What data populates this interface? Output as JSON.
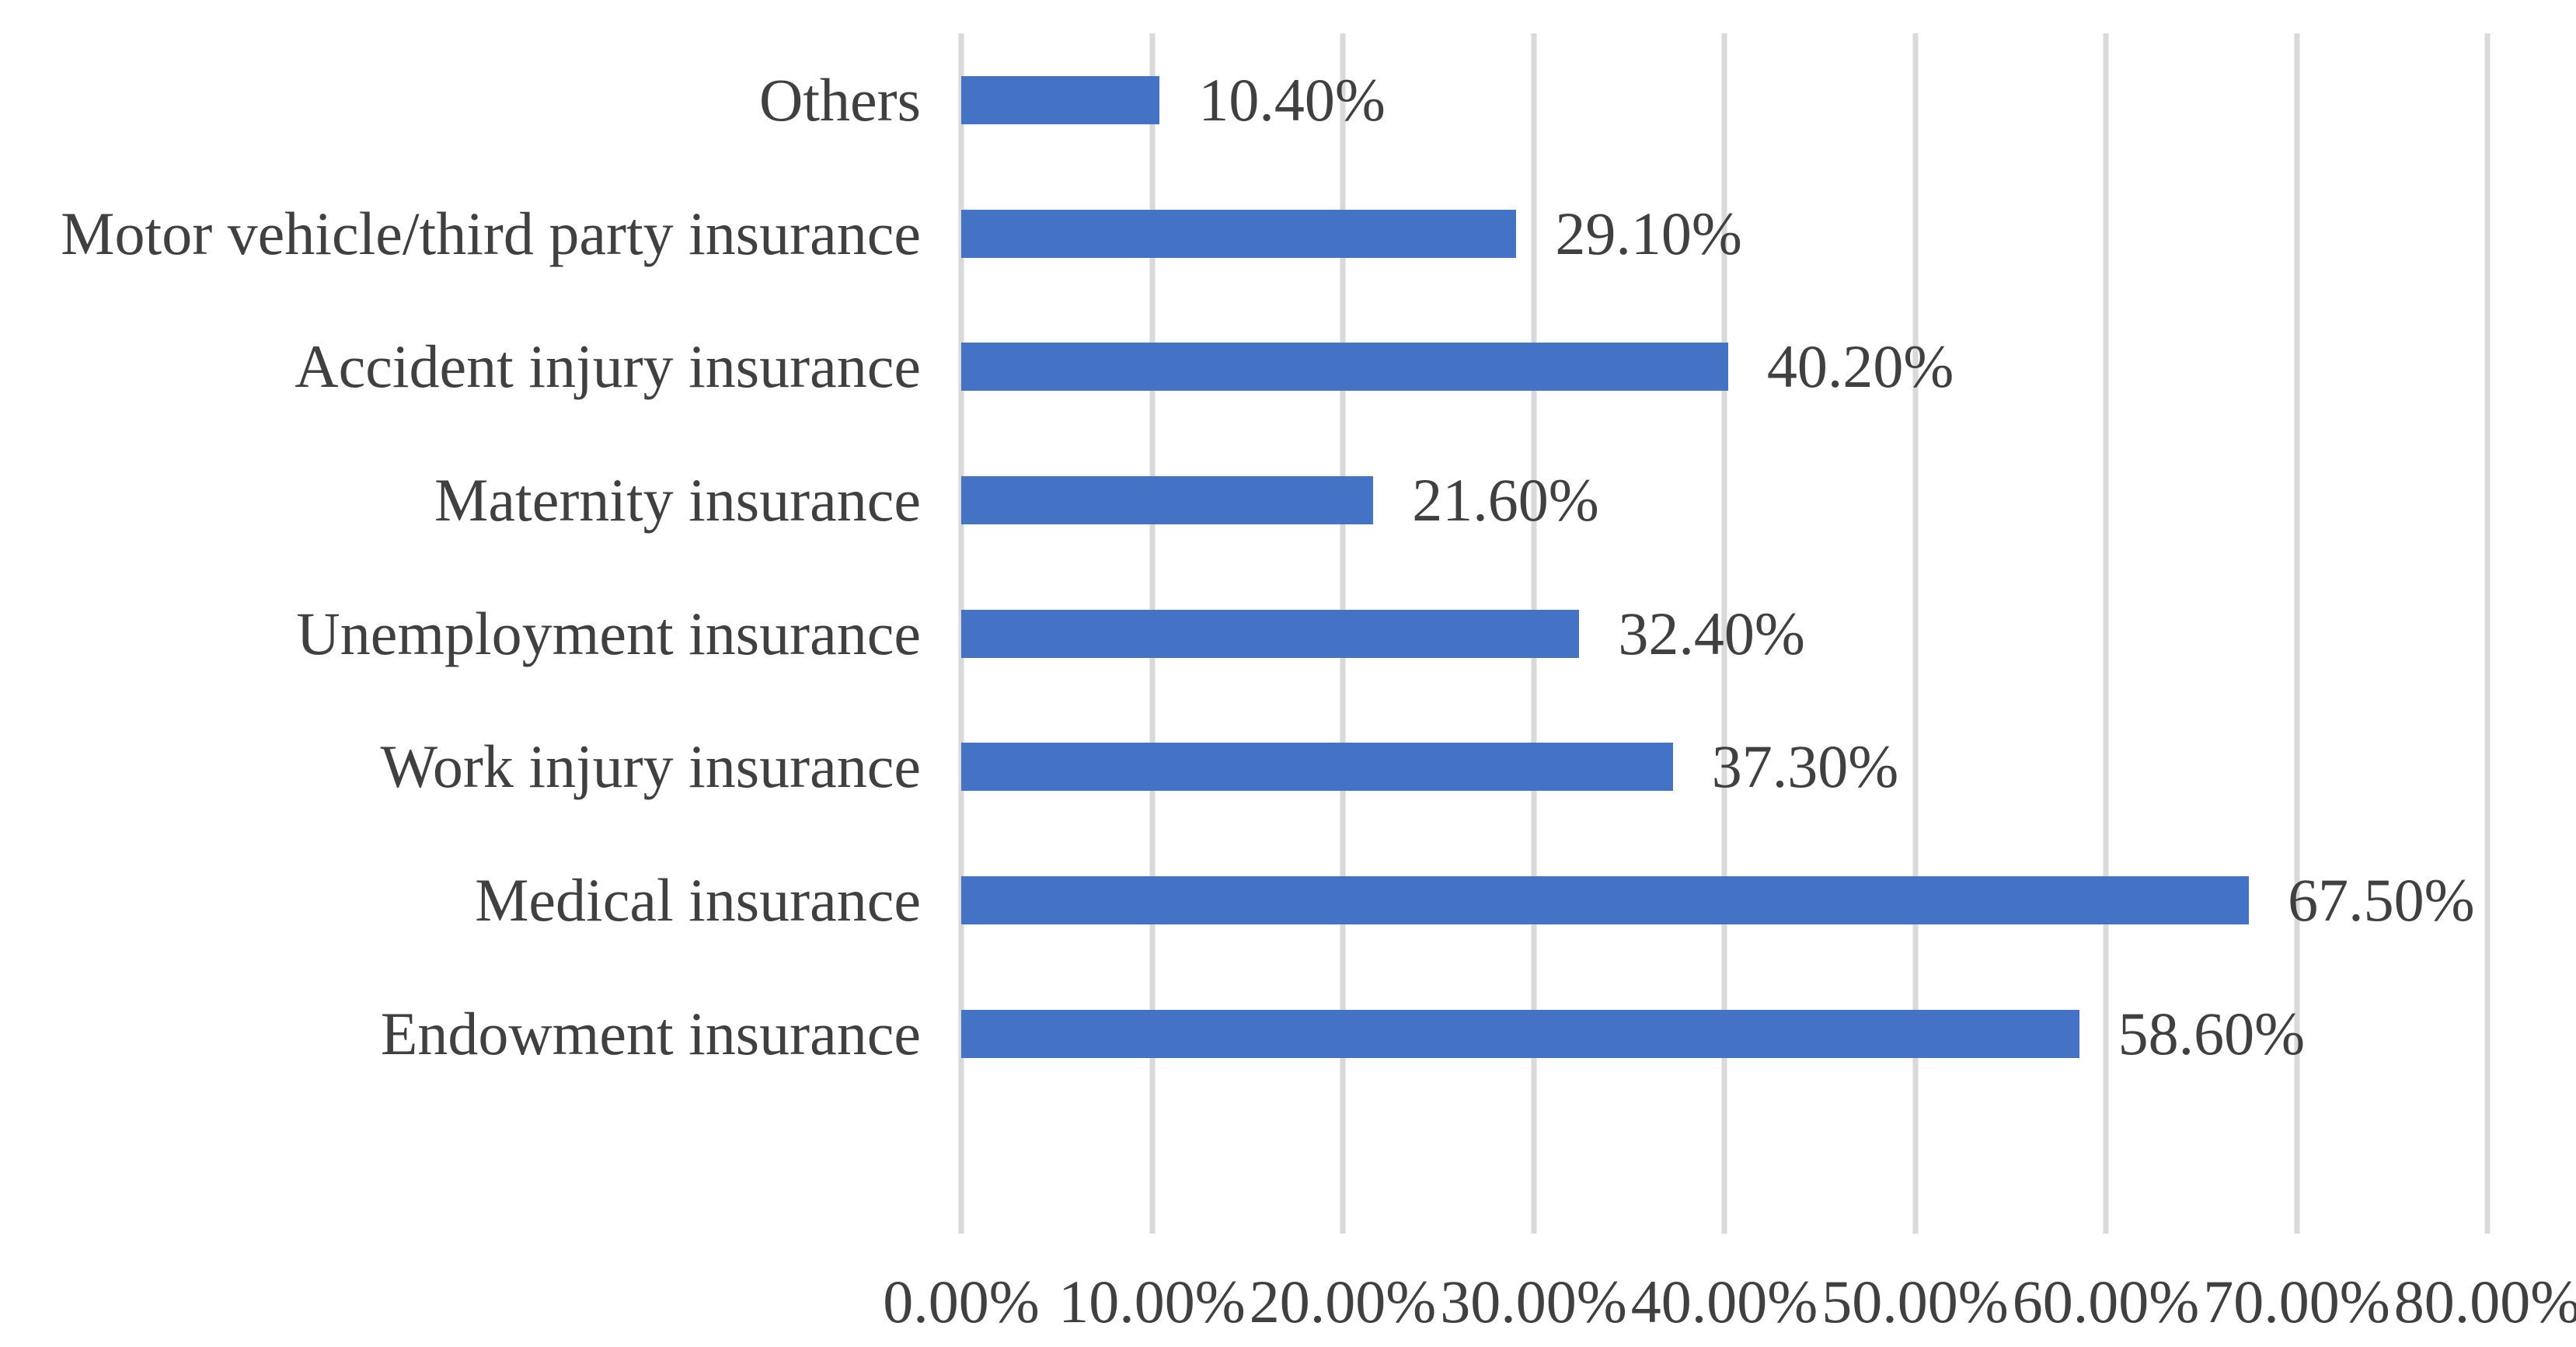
{
  "chart_data": {
    "type": "bar",
    "orientation": "horizontal",
    "title": "",
    "xlabel": "",
    "ylabel": "",
    "categories": [
      "Others",
      "Motor vehicle/third party insurance",
      "Accident injury insurance",
      "Maternity insurance",
      "Unemployment insurance",
      "Work injury insurance",
      "Medical insurance",
      "Endowment insurance"
    ],
    "values": [
      10.4,
      29.1,
      40.2,
      21.6,
      32.4,
      37.3,
      67.5,
      58.6
    ],
    "value_labels": [
      "10.40%",
      "29.10%",
      "40.20%",
      "21.60%",
      "32.40%",
      "37.30%",
      "67.50%",
      "58.60%"
    ],
    "x_tick_labels": [
      "0.00%",
      "10.00%",
      "20.00%",
      "30.00%",
      "40.00%",
      "50.00%",
      "60.00%",
      "70.00%",
      "80.00%"
    ],
    "xlim": [
      0,
      80
    ],
    "grid": "vertical-only",
    "legend": "none",
    "bar_color": "#4472C4",
    "gridline_color": "#D9D9D9",
    "text_color": "#404040",
    "background_color": "#FFFFFF"
  }
}
